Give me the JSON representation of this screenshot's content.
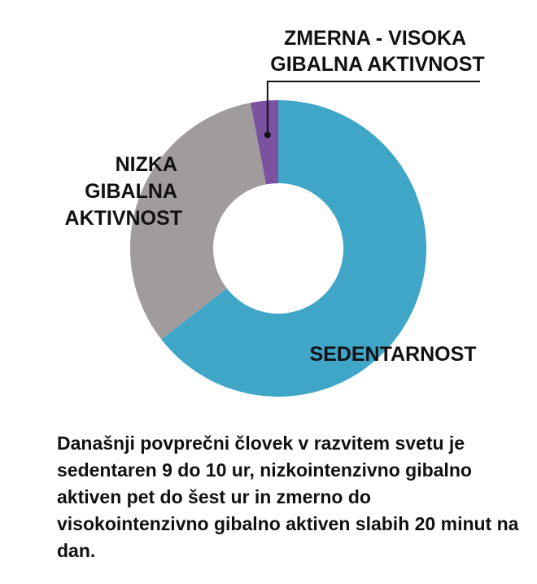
{
  "chart_data": {
    "type": "pie",
    "variant": "donut",
    "series": [
      {
        "labels": [
          "SEDENTARNOST",
          "NIZKA GIBALNA AKTIVNOST",
          "ZMERNA - VISOKA GIBALNA AKTIVNOST"
        ],
        "label_lines": [
          [
            "SEDENTARNOST"
          ],
          [
            "NIZKA",
            "GIBALNA",
            "AKTIVNOST"
          ],
          [
            "ZMERNA - VISOKA",
            "GIBALNA AKTIVNOST"
          ]
        ],
        "values": [
          64.5,
          32.5,
          3.0
        ],
        "colors": [
          "#40A6C8",
          "#A19C9C",
          "#7B52A0"
        ]
      }
    ],
    "legend": "none",
    "grid": false
  },
  "caption": "Današnji povprečni človek v razvitem svetu je sedentaren 9 do 10 ur, nizkointenzivno gibalno aktiven pet do šest ur in zmerno do visokointenzivno gibalno aktiven slabih 20 minut na dan."
}
